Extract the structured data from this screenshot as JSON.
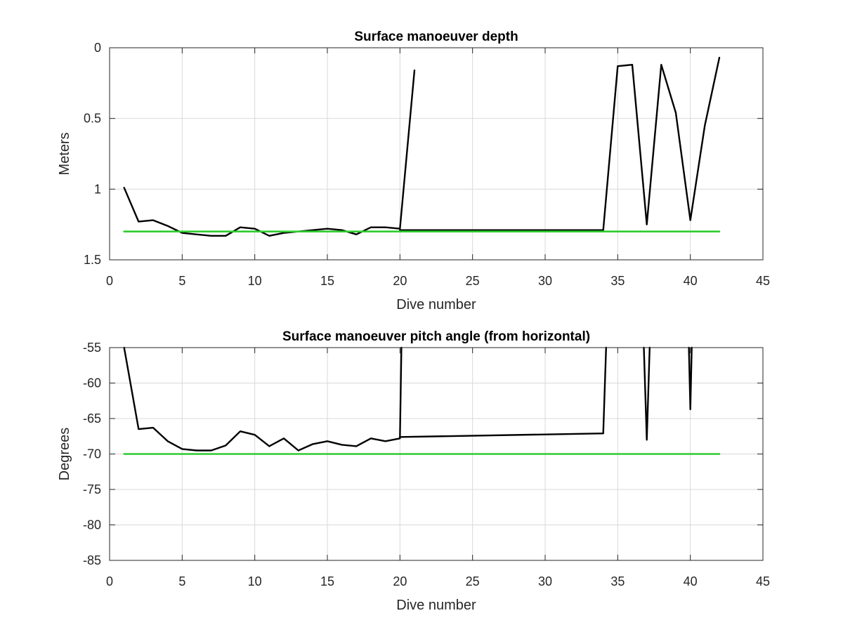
{
  "chart_data": [
    {
      "type": "line",
      "title": "Surface manoeuver depth",
      "xlabel": "Dive number",
      "ylabel": "Meters",
      "xlim": [
        0,
        45
      ],
      "ylim": [
        0,
        1.5
      ],
      "y_reversed": true,
      "grid": true,
      "xticks": [
        "0",
        "5",
        "10",
        "15",
        "20",
        "25",
        "30",
        "35",
        "40",
        "45"
      ],
      "yticks": [
        "0",
        "0.5",
        "1",
        "1.5"
      ],
      "xtick_values": [
        0,
        5,
        10,
        15,
        20,
        25,
        30,
        35,
        40,
        45
      ],
      "ytick_values": [
        0,
        0.5,
        1,
        1.5
      ],
      "series": [
        {
          "color": "#000000",
          "x": [
            1,
            2,
            3,
            4,
            5,
            6,
            7,
            8,
            9,
            10,
            11,
            12,
            13,
            14,
            15,
            16,
            17,
            18,
            19,
            20,
            21
          ],
          "y": [
            0.99,
            1.23,
            1.22,
            1.26,
            1.31,
            1.32,
            1.33,
            1.33,
            1.27,
            1.28,
            1.33,
            1.31,
            1.3,
            1.29,
            1.28,
            1.29,
            1.32,
            1.27,
            1.27,
            1.28,
            0.16
          ]
        },
        {
          "color": "#000000",
          "x": [
            20,
            34,
            35,
            36,
            37,
            38,
            39,
            40,
            41,
            42
          ],
          "y": [
            1.29,
            1.29,
            0.13,
            0.12,
            1.25,
            0.12,
            0.46,
            1.22,
            0.55,
            0.07
          ]
        },
        {
          "color": "#2ecc2e",
          "x": [
            1,
            42
          ],
          "y": [
            1.3,
            1.3
          ]
        }
      ]
    },
    {
      "type": "line",
      "title": "Surface manoeuver pitch angle (from horizontal)",
      "xlabel": "Dive number",
      "ylabel": "Degrees",
      "xlim": [
        0,
        45
      ],
      "ylim": [
        -85,
        -55
      ],
      "y_reversed": false,
      "grid": true,
      "xticks": [
        "0",
        "5",
        "10",
        "15",
        "20",
        "25",
        "30",
        "35",
        "40",
        "45"
      ],
      "yticks": [
        "-55",
        "-60",
        "-65",
        "-70",
        "-75",
        "-80",
        "-85"
      ],
      "xtick_values": [
        0,
        5,
        10,
        15,
        20,
        25,
        30,
        35,
        40,
        45
      ],
      "ytick_values": [
        -55,
        -60,
        -65,
        -70,
        -75,
        -80,
        -85
      ],
      "series": [
        {
          "color": "#000000",
          "x": [
            1,
            2,
            3,
            4,
            5,
            6,
            7,
            8,
            9,
            10,
            11,
            12,
            13,
            14,
            15,
            16,
            17,
            18,
            19,
            20,
            20.1
          ],
          "y": [
            -55,
            -66.5,
            -66.3,
            -68.2,
            -69.3,
            -69.5,
            -69.5,
            -68.8,
            -66.8,
            -67.3,
            -68.9,
            -67.8,
            -69.5,
            -68.6,
            -68.2,
            -68.7,
            -68.9,
            -67.8,
            -68.2,
            -67.8,
            -55
          ]
        },
        {
          "color": "#000000",
          "x": [
            20,
            34,
            34.2
          ],
          "y": [
            -67.6,
            -67.1,
            -55
          ]
        },
        {
          "color": "#000000",
          "x": [
            36.8,
            37,
            37.2
          ],
          "y": [
            -55,
            -68.0,
            -55
          ]
        },
        {
          "color": "#000000",
          "x": [
            39.9,
            40,
            40.1
          ],
          "y": [
            -55,
            -63.7,
            -55
          ]
        },
        {
          "color": "#2ecc2e",
          "x": [
            1,
            42
          ],
          "y": [
            -70,
            -70
          ]
        }
      ]
    }
  ]
}
